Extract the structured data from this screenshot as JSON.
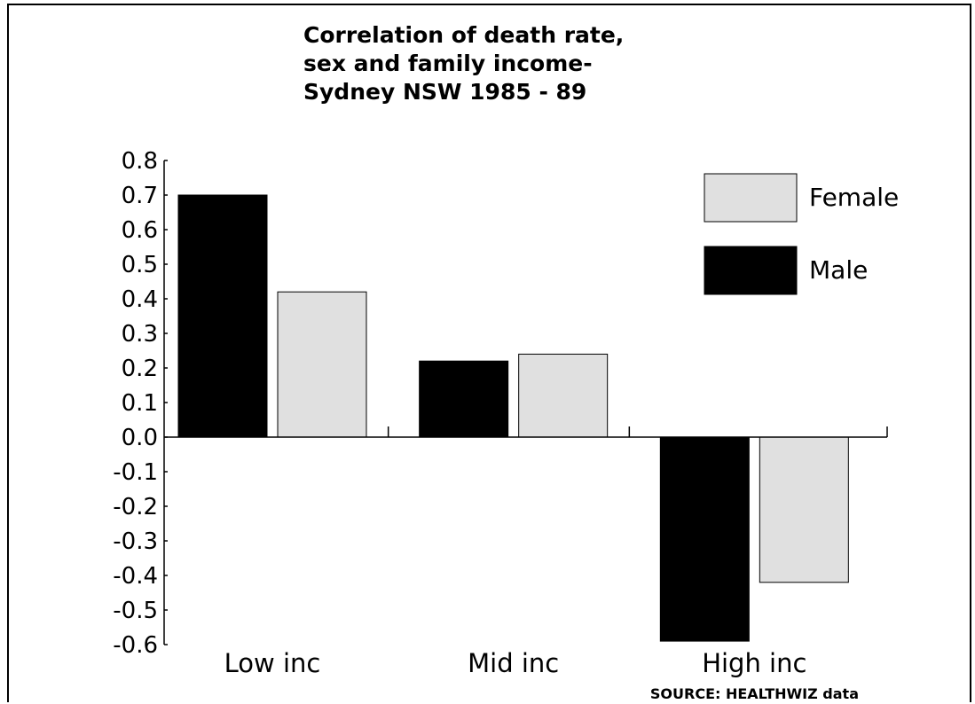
{
  "colors": {
    "male": "#000000",
    "female": "#e0e0e0",
    "axis": "#000000"
  },
  "chart_data": {
    "type": "bar",
    "title_lines": [
      "Correlation of death rate,",
      "sex and family income-",
      "Sydney NSW 1985 - 89"
    ],
    "categories": [
      "Low inc",
      "Mid inc",
      "High inc"
    ],
    "series": [
      {
        "name": "Male",
        "values": [
          0.7,
          0.22,
          -0.59
        ]
      },
      {
        "name": "Female",
        "values": [
          0.42,
          0.24,
          -0.42
        ]
      }
    ],
    "ylim": [
      -0.6,
      0.8
    ],
    "yticks": [
      "0.8",
      "0.7",
      "0.6",
      "0.5",
      "0.4",
      "0.3",
      "0.2",
      "0.1",
      "0.0",
      "-0.1",
      "-0.2",
      "-0.3",
      "-0.4",
      "-0.5",
      "-0.6"
    ],
    "ytick_values": [
      0.8,
      0.7,
      0.6,
      0.5,
      0.4,
      0.3,
      0.2,
      0.1,
      0.0,
      -0.1,
      -0.2,
      -0.3,
      -0.4,
      -0.5,
      -0.6
    ],
    "legend": {
      "position": "top-right",
      "entries": [
        "Female",
        "Male"
      ]
    },
    "grid": false,
    "source": "SOURCE: HEALTHWIZ data"
  }
}
